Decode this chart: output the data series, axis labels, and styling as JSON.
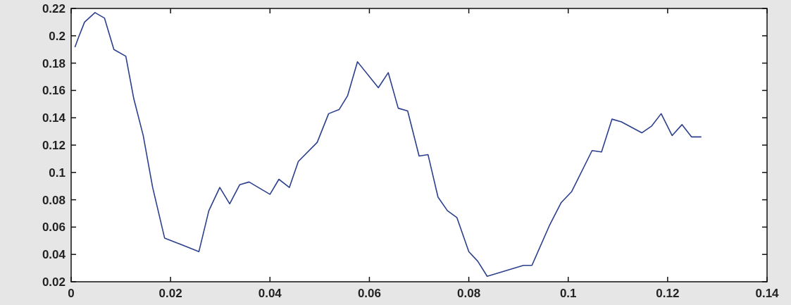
{
  "chart_data": {
    "type": "line",
    "xlim": [
      0,
      0.14
    ],
    "ylim": [
      0.02,
      0.22
    ],
    "xticks": [
      0,
      0.02,
      0.04,
      0.06,
      0.08,
      0.1,
      0.12,
      0.14
    ],
    "yticks": [
      0.02,
      0.04,
      0.06,
      0.08,
      0.1,
      0.12,
      0.14,
      0.16,
      0.18,
      0.2,
      0.22
    ],
    "grid": false,
    "marker": "none",
    "line_style": "solid",
    "series": [
      {
        "color": "#2b3f8c",
        "x": [
          0.0008,
          0.0015,
          0.0027,
          0.0048,
          0.0067,
          0.0086,
          0.011,
          0.0126,
          0.0145,
          0.0164,
          0.0188,
          0.0216,
          0.0257,
          0.0277,
          0.0299,
          0.0319,
          0.0339,
          0.0358,
          0.04,
          0.0418,
          0.0439,
          0.0457,
          0.0495,
          0.0518,
          0.0539,
          0.0556,
          0.0576,
          0.0618,
          0.0638,
          0.0658,
          0.0677,
          0.07,
          0.0718,
          0.0738,
          0.0757,
          0.0776,
          0.08,
          0.0818,
          0.0837,
          0.091,
          0.0927,
          0.0962,
          0.0986,
          0.1007,
          0.1048,
          0.1067,
          0.1088,
          0.1107,
          0.1148,
          0.1168,
          0.1187,
          0.1209,
          0.1229,
          0.1248,
          0.1267
        ],
        "values": [
          0.192,
          0.199,
          0.21,
          0.217,
          0.213,
          0.19,
          0.185,
          0.154,
          0.127,
          0.089,
          0.052,
          0.048,
          0.042,
          0.072,
          0.089,
          0.077,
          0.091,
          0.093,
          0.084,
          0.095,
          0.089,
          0.108,
          0.122,
          0.143,
          0.146,
          0.156,
          0.181,
          0.162,
          0.173,
          0.147,
          0.145,
          0.112,
          0.113,
          0.082,
          0.072,
          0.067,
          0.042,
          0.035,
          0.024,
          0.032,
          0.032,
          0.061,
          0.078,
          0.086,
          0.116,
          0.115,
          0.139,
          0.137,
          0.129,
          0.134,
          0.143,
          0.127,
          0.135,
          0.126,
          0.126
        ]
      }
    ]
  }
}
